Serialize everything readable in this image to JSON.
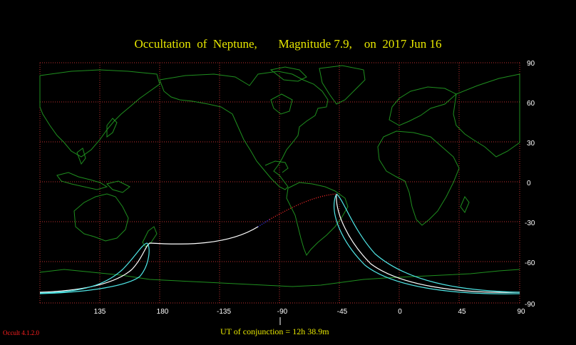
{
  "title": "Occultation  of  Neptune,       Magnitude 7.9,    on  2017 Jun 16",
  "footer": "UT of conjunction = 12h 38.9m",
  "version": "Occult 4.1.2.0",
  "map": {
    "projection": "Mercator",
    "longitude_ticks": [
      "135",
      "180",
      "-135",
      "-90",
      "-45",
      "0",
      "45",
      "90"
    ],
    "latitude_ticks": [
      "90",
      "60",
      "30",
      "0",
      "-30",
      "-60",
      "-90"
    ],
    "colors": {
      "background": "#000000",
      "grid": "#c03030",
      "coastline": "#1f8f1f",
      "central_path": "#ffffff",
      "path_limits": "#4fe6e6",
      "daylight_dots": "#ff2a2a",
      "twilight_dots": "#3a3aff",
      "title": "#e8e800"
    }
  }
}
